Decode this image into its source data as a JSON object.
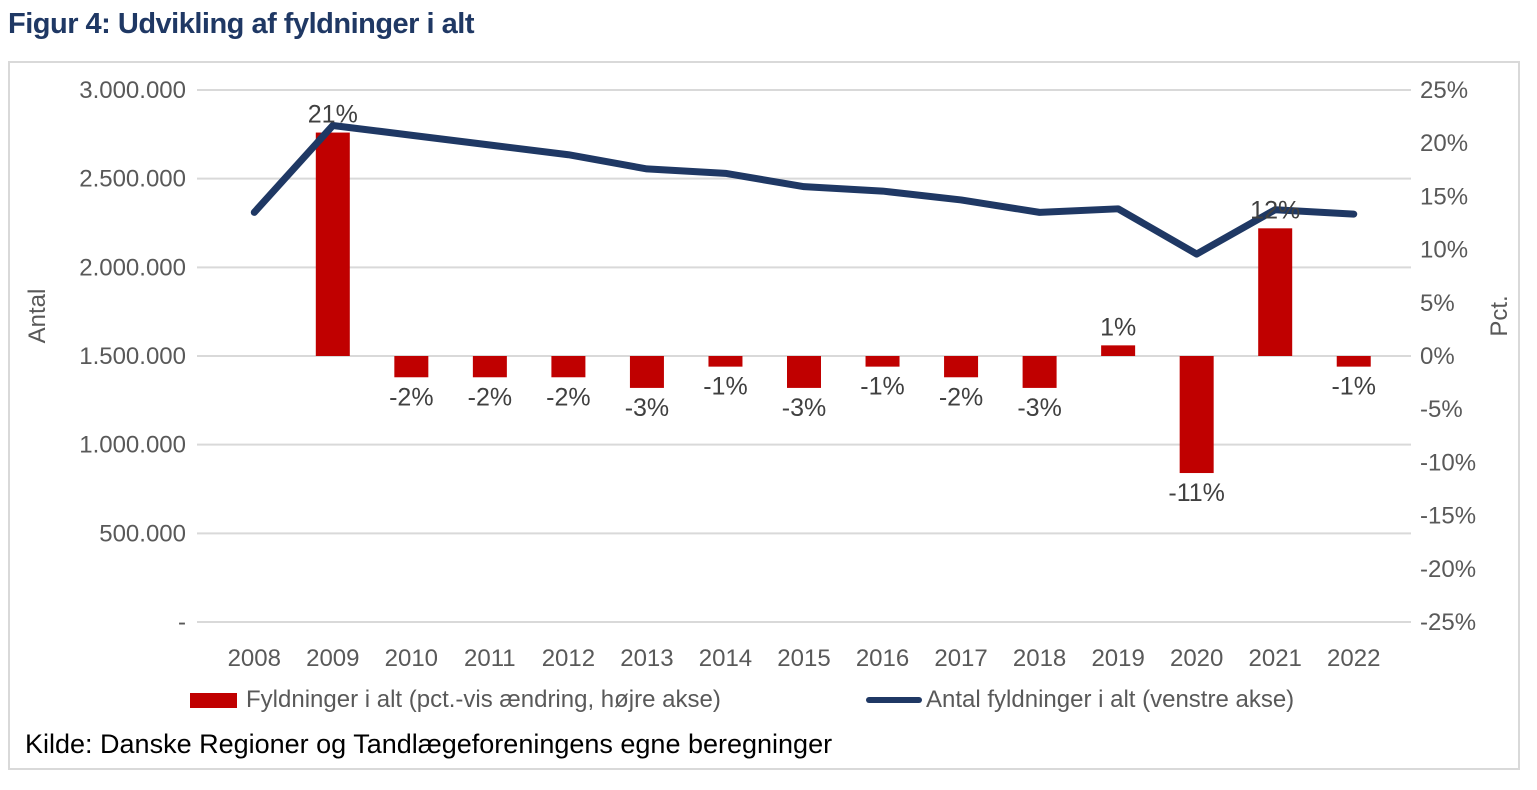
{
  "page": {
    "title": "Figur 4: Udvikling af fyldninger i alt"
  },
  "source": {
    "text": "Kilde: Danske Regioner og Tandlægeforeningens egne beregninger"
  },
  "colors": {
    "navy": "#1F3864",
    "red": "#C00000",
    "grid": "#D9D9D9",
    "axis_text": "#595959",
    "data_label": "#404040",
    "source_text": "#000000"
  },
  "chart_data": {
    "type": "combo_bar_line",
    "title": "Figur 4: Udvikling af fyldninger i alt",
    "categories": [
      "2008",
      "2009",
      "2010",
      "2011",
      "2012",
      "2013",
      "2014",
      "2015",
      "2016",
      "2017",
      "2018",
      "2019",
      "2020",
      "2021",
      "2022"
    ],
    "series": [
      {
        "name": "Fyldninger i alt (pct.-vis ændring, højre akse)",
        "type": "bar",
        "axis": "right",
        "color": "#C00000",
        "unit": "%",
        "values": [
          null,
          21,
          -2,
          -2,
          -2,
          -3,
          -1,
          -3,
          -1,
          -2,
          -3,
          1,
          -11,
          12,
          -1
        ],
        "labels": [
          "",
          "21%",
          "-2%",
          "-2%",
          "-2%",
          "-3%",
          "-1%",
          "-3%",
          "-1%",
          "-2%",
          "-3%",
          "1%",
          "-11%",
          "12%",
          "-1%"
        ]
      },
      {
        "name": "Antal fyldninger i alt (venstre akse)",
        "type": "line",
        "axis": "left",
        "color": "#1F3864",
        "values": [
          2310000,
          2800000,
          2745000,
          2690000,
          2635000,
          2555000,
          2530000,
          2455000,
          2430000,
          2380000,
          2310000,
          2330000,
          2075000,
          2325000,
          2300000
        ]
      }
    ],
    "left_axis": {
      "title": "Antal",
      "tick_labels": [
        "3.000.000",
        "2.500.000",
        "2.000.000",
        "1.500.000",
        "1.000.000",
        "500.000",
        "-"
      ],
      "tick_values": [
        3000000,
        2500000,
        2000000,
        1500000,
        1000000,
        500000,
        0
      ],
      "range": [
        0,
        3000000
      ]
    },
    "right_axis": {
      "title": "Pct.",
      "tick_labels": [
        "25%",
        "20%",
        "15%",
        "10%",
        "5%",
        "0%",
        "-5%",
        "-10%",
        "-15%",
        "-20%",
        "-25%"
      ],
      "tick_values": [
        25,
        20,
        15,
        10,
        5,
        0,
        -5,
        -10,
        -15,
        -20,
        -25
      ],
      "range": [
        -25,
        25
      ]
    },
    "grid": true,
    "legend_position": "bottom"
  }
}
